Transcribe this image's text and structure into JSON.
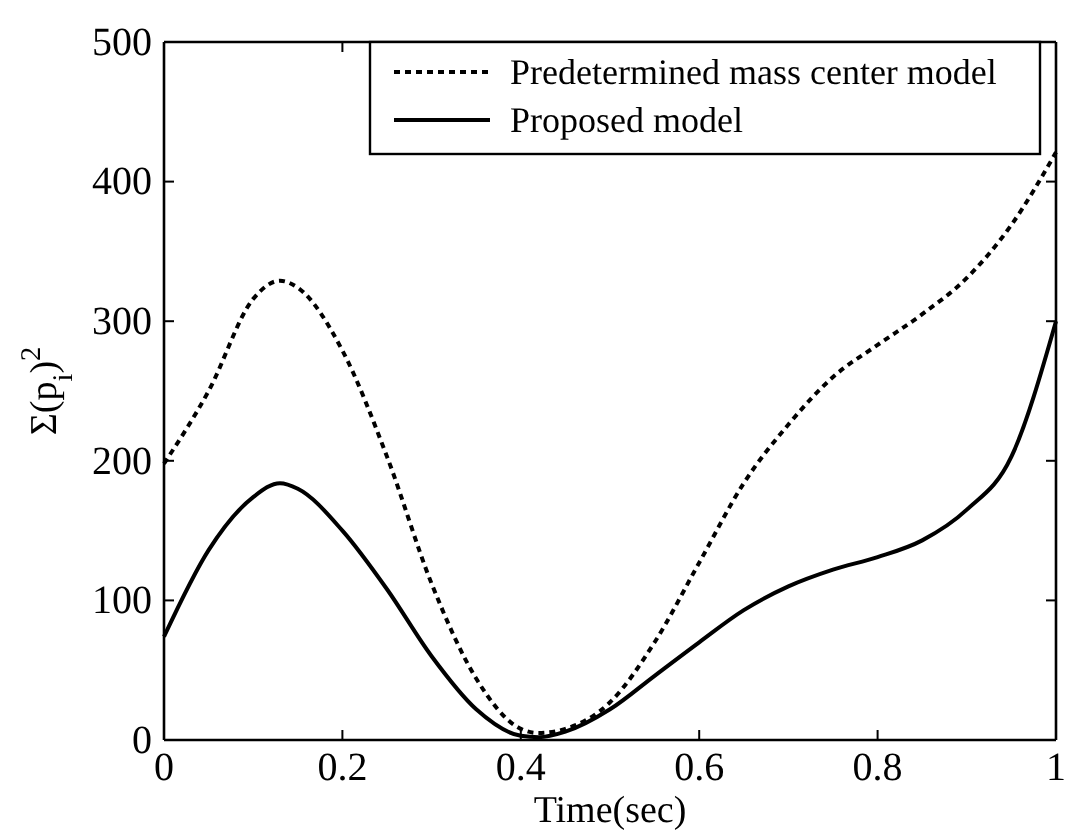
{
  "chart_data": {
    "type": "line",
    "xlabel": "Time(sec)",
    "ylabel": "Σ(p$_{i}$)$^{2}$",
    "xlim": [
      0,
      1
    ],
    "xticks": [
      0,
      0.2,
      0.4,
      0.6,
      0.8,
      1
    ],
    "ylim": [
      0,
      500
    ],
    "yticks": [
      0,
      100,
      200,
      300,
      400,
      500
    ],
    "grid": false,
    "legend": "top right",
    "marker": "none",
    "series": [
      {
        "name": "Predetermined mass center model",
        "color": "#000000",
        "line_style": "dotted",
        "x": [
          0,
          0.05,
          0.1,
          0.13,
          0.15,
          0.2,
          0.25,
          0.3,
          0.35,
          0.4,
          0.42,
          0.45,
          0.5,
          0.55,
          0.6,
          0.65,
          0.7,
          0.75,
          0.8,
          0.85,
          0.9,
          0.95,
          1
        ],
        "values": [
          198,
          250,
          316,
          329,
          324,
          279,
          203,
          112,
          44,
          8,
          5,
          8,
          27,
          70,
          127,
          184,
          226,
          260,
          283,
          305,
          331,
          369,
          421
        ]
      },
      {
        "name": "Proposed model",
        "color": "#000000",
        "line_style": "solid",
        "x": [
          0,
          0.05,
          0.1,
          0.13,
          0.15,
          0.2,
          0.25,
          0.3,
          0.35,
          0.4,
          0.42,
          0.45,
          0.5,
          0.55,
          0.6,
          0.65,
          0.7,
          0.75,
          0.8,
          0.85,
          0.9,
          0.95,
          1
        ],
        "values": [
          74,
          136,
          174,
          184,
          180,
          150,
          108,
          60,
          22,
          3,
          2,
          6,
          22,
          46,
          70,
          93,
          110,
          122,
          131,
          143,
          165,
          203,
          300
        ]
      }
    ]
  }
}
